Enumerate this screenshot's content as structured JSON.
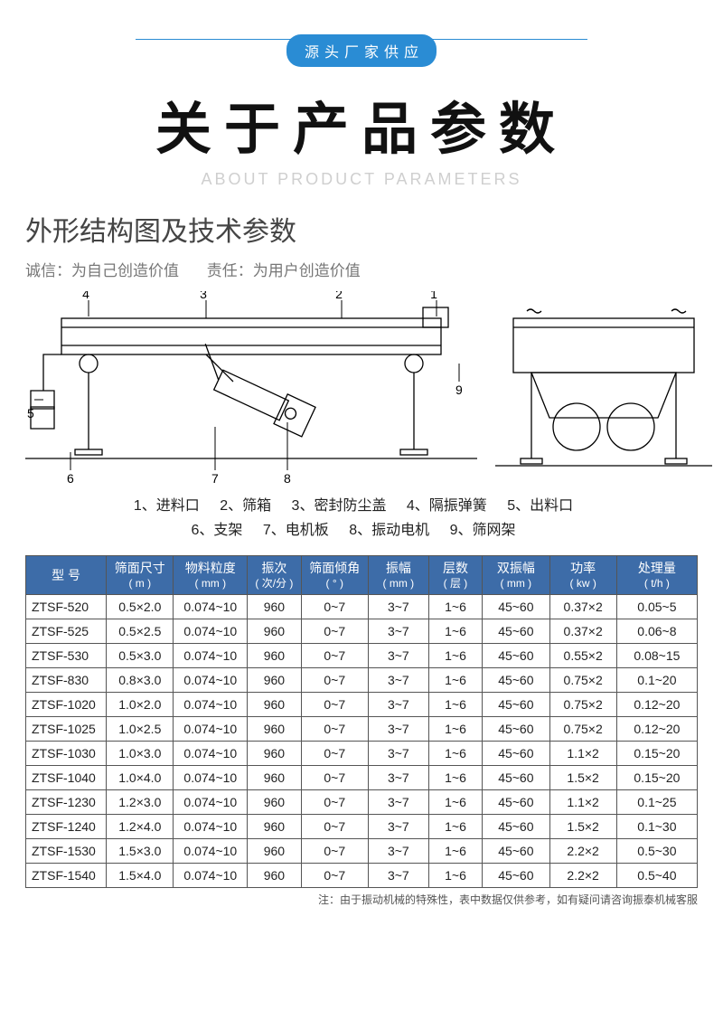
{
  "header": {
    "pill": "源头厂家供应",
    "title": "关于产品参数",
    "subtitle": "ABOUT PRODUCT PARAMETERS"
  },
  "section": {
    "title": "外形结构图及技术参数",
    "motto_left": "诚信：为自己创造价值",
    "motto_right": "责任：为用户创造价值"
  },
  "diagram_numbers": [
    "1",
    "2",
    "3",
    "4",
    "5",
    "6",
    "7",
    "8",
    "9"
  ],
  "legend": [
    "1、进料口",
    "2、筛箱",
    "3、密封防尘盖",
    "4、隔振弹簧",
    "5、出料口",
    "6、支架",
    "7、电机板",
    "8、振动电机",
    "9、筛网架"
  ],
  "table": {
    "columns": [
      {
        "label": "型 号",
        "unit": ""
      },
      {
        "label": "筛面尺寸",
        "unit": "( m )"
      },
      {
        "label": "物料粒度",
        "unit": "( mm )"
      },
      {
        "label": "振次",
        "unit": "( 次/分 )"
      },
      {
        "label": "筛面倾角",
        "unit": "( ° )"
      },
      {
        "label": "振幅",
        "unit": "( mm )"
      },
      {
        "label": "层数",
        "unit": "( 层 )"
      },
      {
        "label": "双振幅",
        "unit": "( mm )"
      },
      {
        "label": "功率",
        "unit": "( kw )"
      },
      {
        "label": "处理量",
        "unit": "( t/h )"
      }
    ],
    "col_widths": [
      "12%",
      "10%",
      "11%",
      "8%",
      "10%",
      "9%",
      "8%",
      "10%",
      "10%",
      "12%"
    ],
    "rows": [
      [
        "ZTSF-520",
        "0.5×2.0",
        "0.074~10",
        "960",
        "0~7",
        "3~7",
        "1~6",
        "45~60",
        "0.37×2",
        "0.05~5"
      ],
      [
        "ZTSF-525",
        "0.5×2.5",
        "0.074~10",
        "960",
        "0~7",
        "3~7",
        "1~6",
        "45~60",
        "0.37×2",
        "0.06~8"
      ],
      [
        "ZTSF-530",
        "0.5×3.0",
        "0.074~10",
        "960",
        "0~7",
        "3~7",
        "1~6",
        "45~60",
        "0.55×2",
        "0.08~15"
      ],
      [
        "ZTSF-830",
        "0.8×3.0",
        "0.074~10",
        "960",
        "0~7",
        "3~7",
        "1~6",
        "45~60",
        "0.75×2",
        "0.1~20"
      ],
      [
        "ZTSF-1020",
        "1.0×2.0",
        "0.074~10",
        "960",
        "0~7",
        "3~7",
        "1~6",
        "45~60",
        "0.75×2",
        "0.12~20"
      ],
      [
        "ZTSF-1025",
        "1.0×2.5",
        "0.074~10",
        "960",
        "0~7",
        "3~7",
        "1~6",
        "45~60",
        "0.75×2",
        "0.12~20"
      ],
      [
        "ZTSF-1030",
        "1.0×3.0",
        "0.074~10",
        "960",
        "0~7",
        "3~7",
        "1~6",
        "45~60",
        "1.1×2",
        "0.15~20"
      ],
      [
        "ZTSF-1040",
        "1.0×4.0",
        "0.074~10",
        "960",
        "0~7",
        "3~7",
        "1~6",
        "45~60",
        "1.5×2",
        "0.15~20"
      ],
      [
        "ZTSF-1230",
        "1.2×3.0",
        "0.074~10",
        "960",
        "0~7",
        "3~7",
        "1~6",
        "45~60",
        "1.1×2",
        "0.1~25"
      ],
      [
        "ZTSF-1240",
        "1.2×4.0",
        "0.074~10",
        "960",
        "0~7",
        "3~7",
        "1~6",
        "45~60",
        "1.5×2",
        "0.1~30"
      ],
      [
        "ZTSF-1530",
        "1.5×3.0",
        "0.074~10",
        "960",
        "0~7",
        "3~7",
        "1~6",
        "45~60",
        "2.2×2",
        "0.5~30"
      ],
      [
        "ZTSF-1540",
        "1.5×4.0",
        "0.074~10",
        "960",
        "0~7",
        "3~7",
        "1~6",
        "45~60",
        "2.2×2",
        "0.5~40"
      ]
    ]
  },
  "footnote": "注：由于振动机械的特殊性，表中数据仅供参考，如有疑问请咨询振泰机械客服",
  "colors": {
    "pill_bg": "#2a8cd4",
    "th_bg": "#3d6ca8",
    "border": "#555555",
    "text": "#222222",
    "sub": "#cfcfcf"
  }
}
